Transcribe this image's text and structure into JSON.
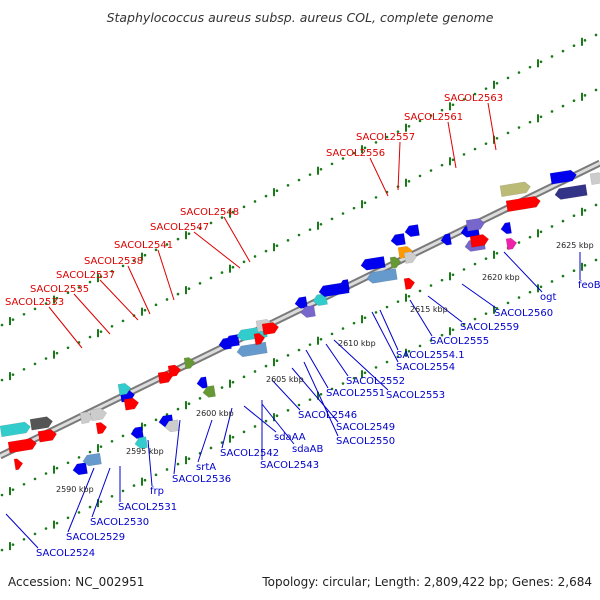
{
  "title": "Staphylococcus aureus subsp. aureus COL, complete genome",
  "footer": {
    "accession": "Accession: NC_002951",
    "topology": "Topology: circular; Length: 2,809,422 bp; Genes: 2,684"
  },
  "colors": {
    "forward_label": "#dd0000",
    "reverse_label": "#0000cc",
    "backbone": "#888888",
    "tick": "#1a7a1a"
  },
  "kbp_ticks": [
    "2590 kbp",
    "2595 kbp",
    "2600 kbp",
    "2605 kbp",
    "2610 kbp",
    "2615 kbp",
    "2620 kbp",
    "2625 kbp"
  ],
  "labels_top": [
    "SACOL2533",
    "SACOL2535",
    "SACOL2537",
    "SACOL2538",
    "SACOL2541",
    "SACOL2547",
    "SACOL2548",
    "SACOL2556",
    "SACOL2557",
    "SACOL2561",
    "SACOL2563"
  ],
  "labels_bottom": [
    "SACOL2524",
    "SACOL2529",
    "SACOL2530",
    "SACOL2531",
    "frp",
    "SACOL2536",
    "srtA",
    "SACOL2542",
    "sdaAA",
    "SACOL2543",
    "sdaAB",
    "SACOL2546",
    "SACOL2549",
    "SACOL2550",
    "SACOL2551",
    "SACOL2552",
    "SACOL2553",
    "SACOL2554",
    "SACOL2554.1",
    "SACOL2555",
    "SACOL2559",
    "SACOL2560",
    "ogt",
    "feoB"
  ]
}
